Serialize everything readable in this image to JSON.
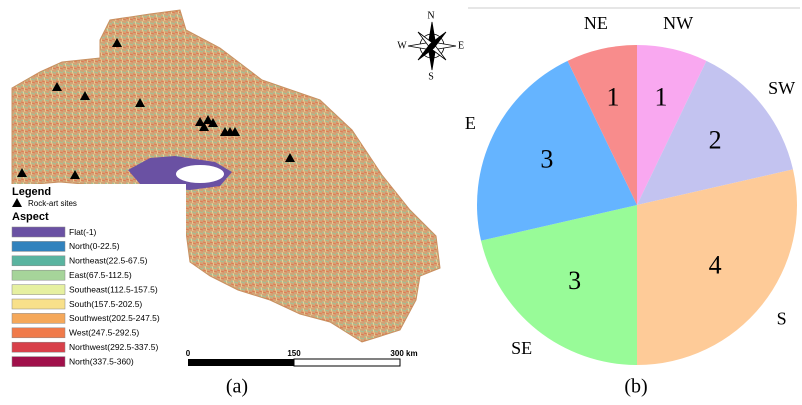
{
  "chart_data": {
    "type": "pie",
    "categories": [
      "NW",
      "SW",
      "S",
      "SE",
      "E",
      "NE"
    ],
    "values": [
      1,
      2,
      4,
      3,
      3,
      1
    ],
    "colors": [
      "#f9a8f0",
      "#c3c3f0",
      "#fecb98",
      "#98fb98",
      "#65b4ff",
      "#f88c8c"
    ]
  },
  "map": {
    "legend_title": "Legend",
    "site_label": "Rock-art sites",
    "aspect_title": "Aspect",
    "classes": [
      {
        "label": "Flat(-1)",
        "color": "#6a51a3"
      },
      {
        "label": "North(0-22.5)",
        "color": "#3182bd"
      },
      {
        "label": "Northeast(22.5-67.5)",
        "color": "#5ab4a0"
      },
      {
        "label": "East(67.5-112.5)",
        "color": "#a6d49a"
      },
      {
        "label": "Southeast(112.5-157.5)",
        "color": "#e6f0a0"
      },
      {
        "label": "South(157.5-202.5)",
        "color": "#f8e08a"
      },
      {
        "label": "Southwest(202.5-247.5)",
        "color": "#f5a85a"
      },
      {
        "label": "West(247.5-292.5)",
        "color": "#f07a4a"
      },
      {
        "label": "Northwest(292.5-337.5)",
        "color": "#d8404a"
      },
      {
        "label": "North(337.5-360)",
        "color": "#a0104a"
      }
    ],
    "scale_labels": [
      "0",
      "150",
      "300 km"
    ],
    "compass": [
      "N",
      "S",
      "W",
      "E"
    ]
  },
  "captions": [
    "(a)",
    "(b)"
  ]
}
